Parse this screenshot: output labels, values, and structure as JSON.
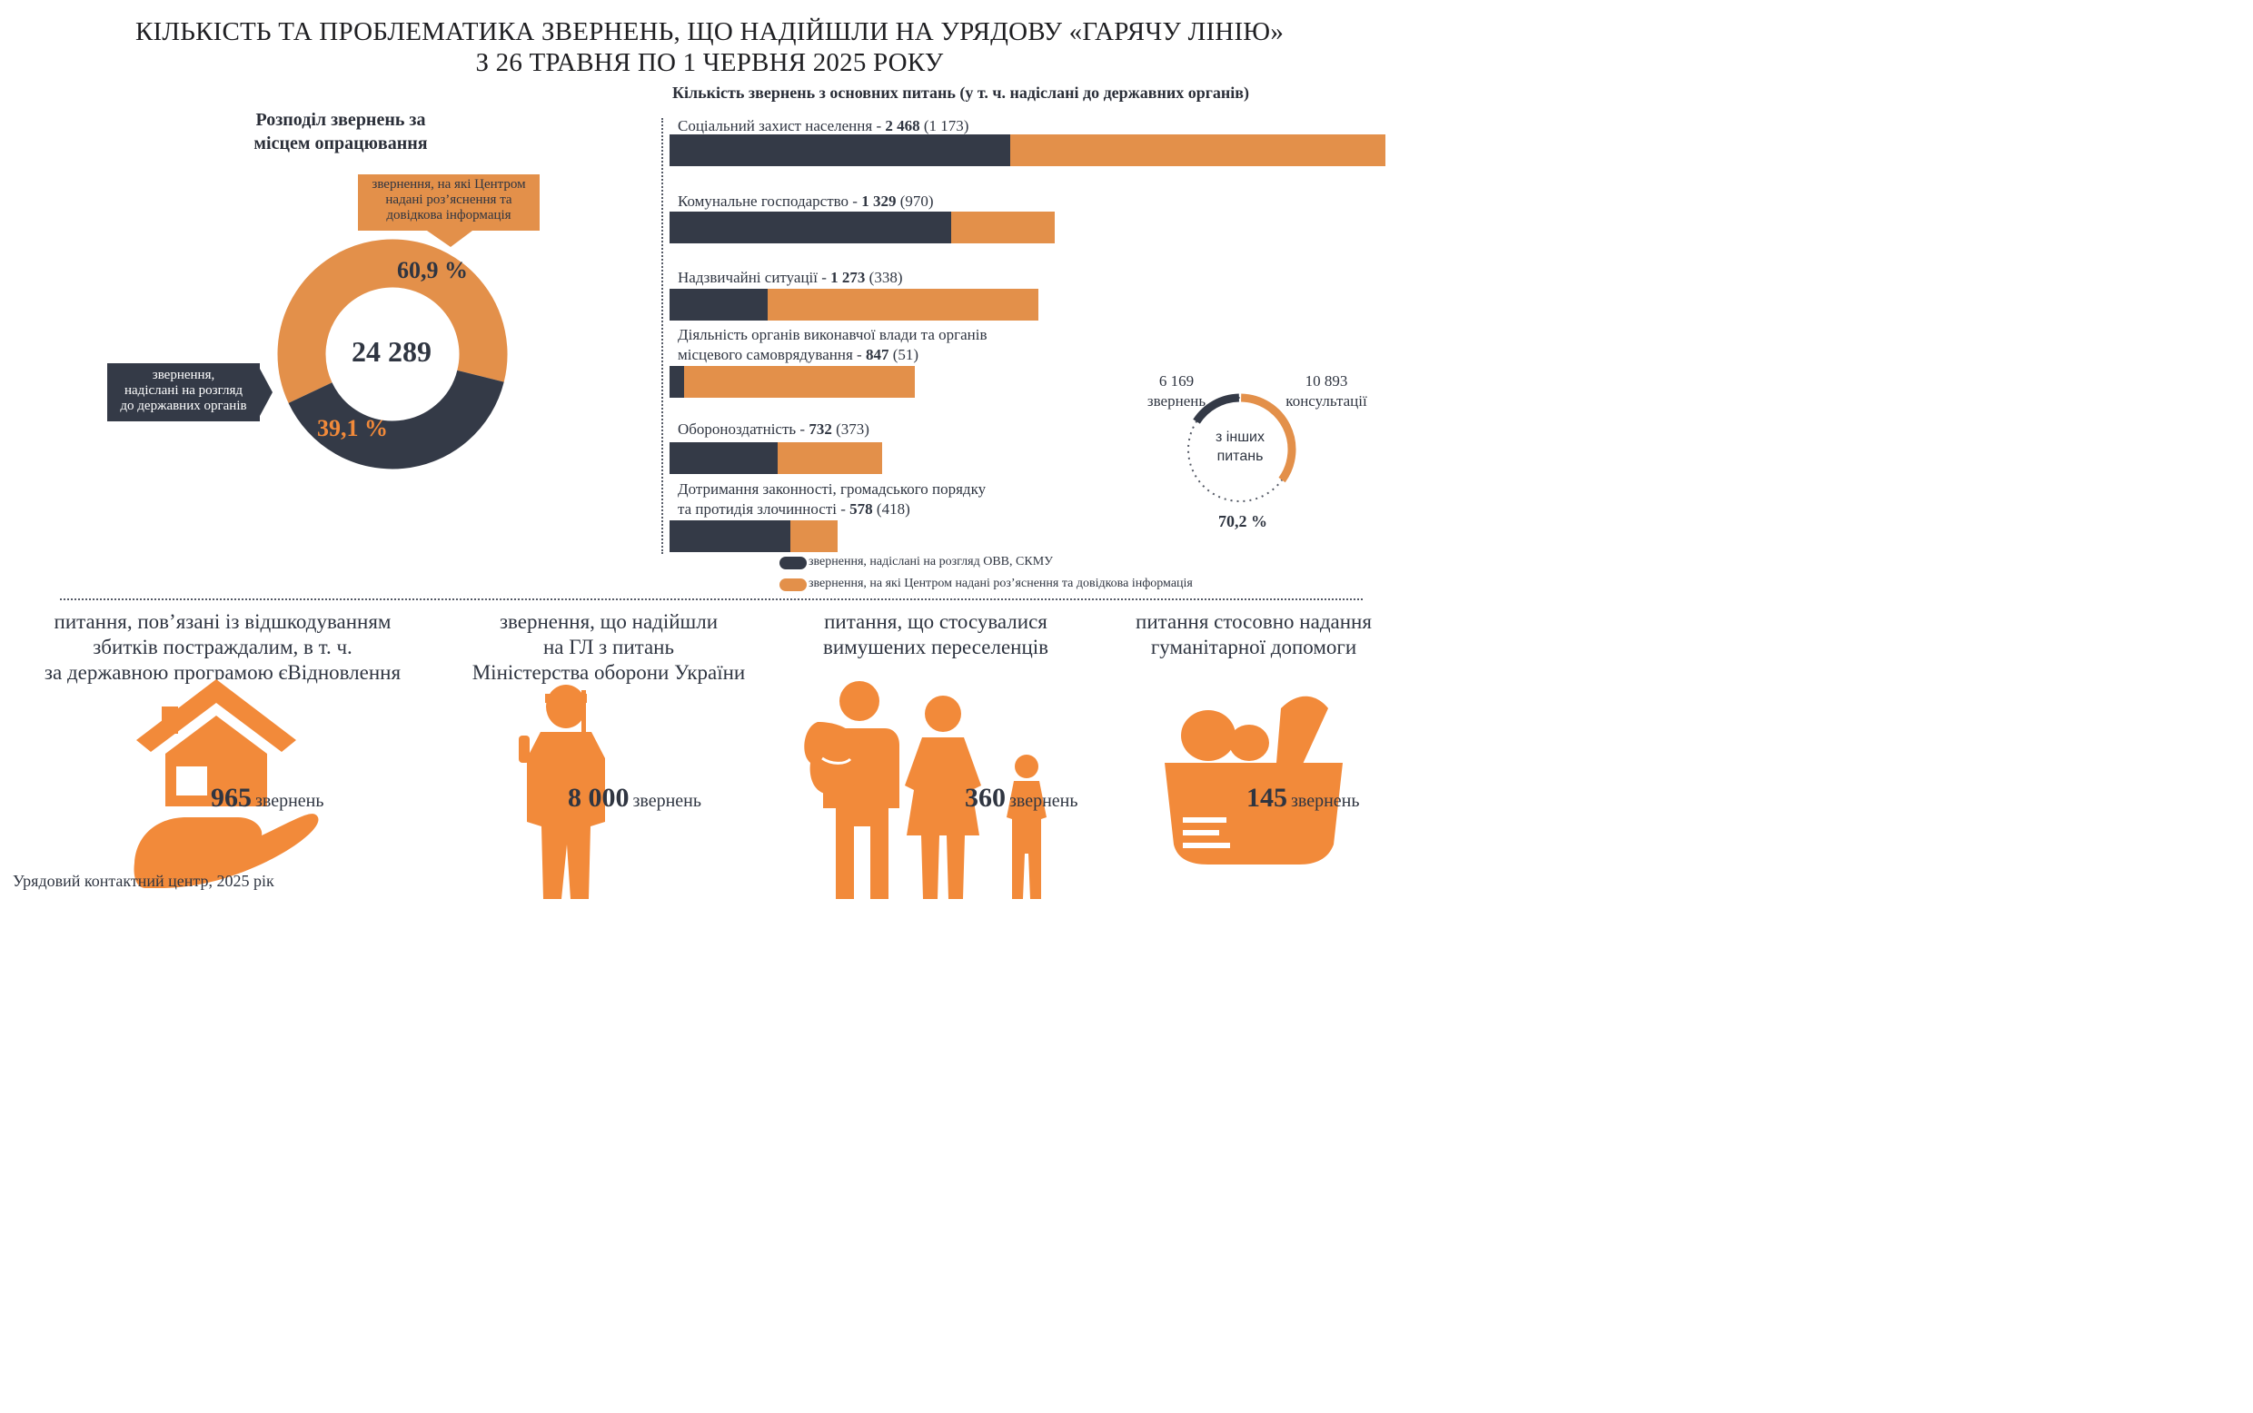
{
  "title": {
    "line1": "КІЛЬКІСТЬ ТА ПРОБЛЕМАТИКА ЗВЕРНЕНЬ, ЩО НАДІЙШЛИ НА УРЯДОВУ «ГАРЯЧУ ЛІНІЮ»",
    "line2": "З 26 ТРАВНЯ ПО 1 ЧЕРВНЯ 2025 РОКУ"
  },
  "colors": {
    "dark": "#343a47",
    "orange": "#e3904a",
    "orange_bright": "#f28a3a"
  },
  "donut": {
    "heading_line1": "Розподіл звернень за",
    "heading_line2": "місцем опрацювання",
    "total": "24 289",
    "orange_pct_label": "60,9 %",
    "dark_pct_label": "39,1 %",
    "orange_callout": [
      "звернення, на які Центром",
      "надані роз’яснення та",
      "довідкова інформація"
    ],
    "dark_callout": [
      "звернення,",
      "надіслані на розгляд",
      "до державних органів"
    ]
  },
  "bars_heading": "Кількість звернень з основних питань (у т. ч. надіслані до державних органів)",
  "small_donut": {
    "left_num": "6 169",
    "left_word": "звернень",
    "right_num": "10 893",
    "right_word": "консультації",
    "center_line1": "з інших",
    "center_line2": "питань",
    "pct": "70,2 %"
  },
  "legend": {
    "dark": "звернення, надіслані на розгляд ОВВ, СКМУ",
    "orange": "звернення, на які Центром надані роз’яснення та довідкова інформація"
  },
  "bottom": {
    "house": {
      "title": [
        "питання, пов’язані із відшкодуванням",
        "збитків постраждалим, в т. ч.",
        "за державною програмою єВідновлення"
      ],
      "num": "965",
      "unit": "звернень"
    },
    "soldier": {
      "title": [
        "звернення, що надійшли",
        "на ГЛ з питань",
        "Міністерства оборони України"
      ],
      "num": "8 000",
      "unit": "звернень"
    },
    "family": {
      "title": [
        "питання, що стосувалися",
        "вимушених переселенців"
      ],
      "num": "360",
      "unit": "звернень"
    },
    "basket": {
      "title": [
        "питання стосовно надання",
        "гуманітарної допомоги"
      ],
      "num": "145",
      "unit": "звернень"
    }
  },
  "footer": "Урядовий контактний центр, 2025 рік",
  "chart_data": [
    {
      "type": "pie",
      "title": "Розподіл звернень за місцем опрацювання",
      "total": 24289,
      "slices": [
        {
          "name": "звернення, на які Центром надані роз’яснення та довідкова інформація",
          "value": 60.9
        },
        {
          "name": "звернення, надіслані на розгляд до державних органів",
          "value": 39.1
        }
      ]
    },
    {
      "type": "bar",
      "orientation": "horizontal",
      "stacked": true,
      "title": "Кількість звернень з основних питань (у т. ч. надіслані до державних органів)",
      "categories": [
        {
          "pre": "Соціальний захист населення - ",
          "pre2": "",
          "total_label": "2 468",
          "sent_label": " (1 173)",
          "total": 2468,
          "sent": 1173
        },
        {
          "pre": "Комунальне господарство - ",
          "pre2": "",
          "total_label": "1 329",
          "sent_label": " (970)",
          "total": 1329,
          "sent": 970
        },
        {
          "pre": "Надзвичайні ситуації - ",
          "pre2": "",
          "total_label": "1 273",
          "sent_label": " (338)",
          "total": 1273,
          "sent": 338
        },
        {
          "pre": "Діяльність органів виконавчої влади та органів",
          "pre2": "місцевого самоврядування - ",
          "total_label": "847",
          "sent_label": " (51)",
          "total": 847,
          "sent": 51
        },
        {
          "pre": "Обороноздатність - ",
          "pre2": "",
          "total_label": "732",
          "sent_label": " (373)",
          "total": 732,
          "sent": 373
        },
        {
          "pre": "Дотримання законності, громадського порядку",
          "pre2": "та протидія злочинності - ",
          "total_label": "578",
          "sent_label": " (418)",
          "total": 578,
          "sent": 418
        }
      ],
      "series": [
        {
          "name": "звернення, надіслані на розгляд ОВВ, СКМУ",
          "key": "sent"
        },
        {
          "name": "звернення, на які Центром надані роз’яснення та довідкова інформація",
          "key": "rest"
        }
      ],
      "xlim": [
        0,
        2468
      ]
    },
    {
      "type": "pie",
      "title": "з інших питань",
      "slices": [
        {
          "name": "звернень",
          "value": 6169
        },
        {
          "name": "консультації",
          "value": 10893
        }
      ],
      "pct_label": "70,2 %"
    }
  ]
}
